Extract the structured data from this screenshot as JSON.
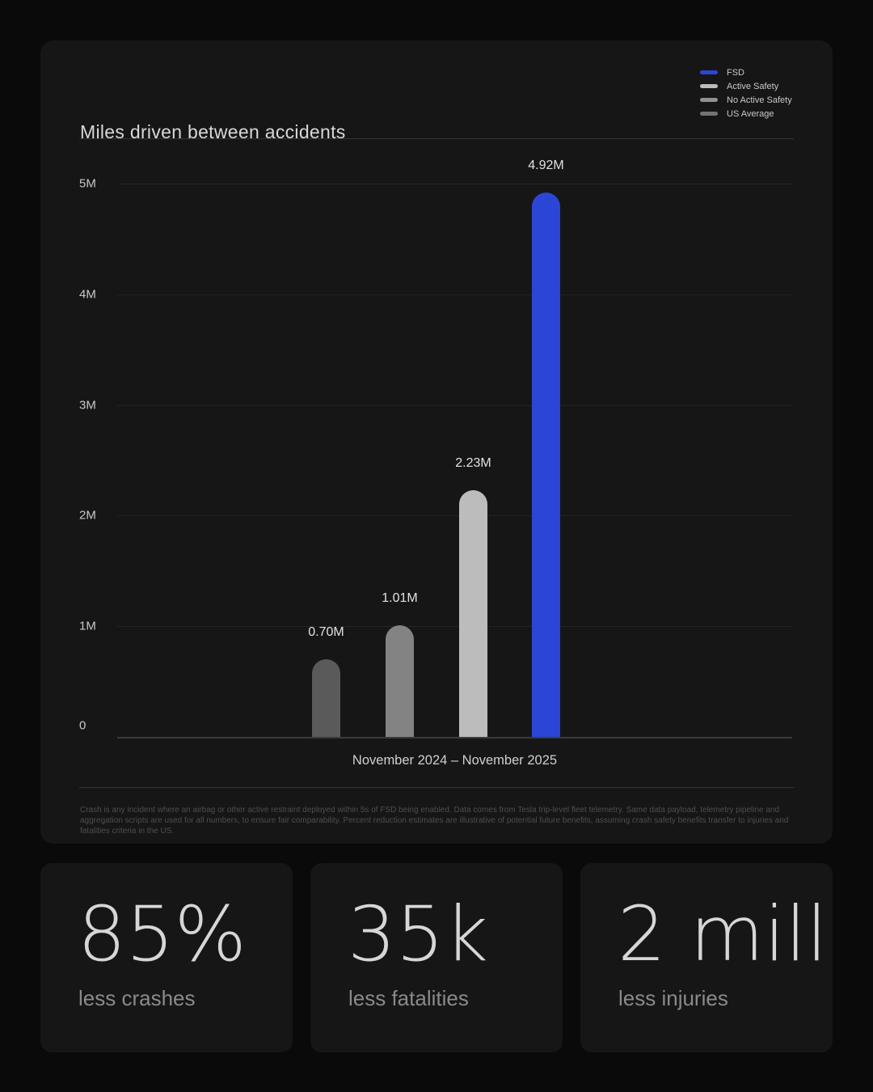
{
  "chart_card": {
    "title": "Miles driven between accidents",
    "x_axis_label": "November 2024 – November 2025",
    "footnote": "Crash is any incident where an airbag or other active restraint deployed within 5s of FSD being enabled. Data comes from Tesla trip-level fleet telemetry. Same data payload, telemetry pipeline and aggregation scripts are used for all numbers, to ensure fair comparability. Percent reduction estimates are illustrative of potential future benefits, assuming crash safety benefits transfer to injuries and fatalities criteria in the US.",
    "legend": [
      {
        "label": "FSD",
        "color": "#2b46d4"
      },
      {
        "label": "Active Safety",
        "color": "#bcbcbc"
      },
      {
        "label": "No Active Safety",
        "color": "#919191"
      },
      {
        "label": "US Average",
        "color": "#737373"
      }
    ]
  },
  "chart_data": {
    "type": "bar",
    "title": "Miles driven between accidents",
    "categories": [
      "US Average",
      "No Active Safety",
      "Active Safety",
      "FSD"
    ],
    "values": [
      0.7,
      1.01,
      2.23,
      4.92
    ],
    "value_labels": [
      "0.70M",
      "1.01M",
      "2.23M",
      "4.92M"
    ],
    "bar_colors": [
      "#5a5a5a",
      "#838383",
      "#bcbcbc",
      "#2b46d4"
    ],
    "xlabel": "November 2024 – November 2025",
    "ylabel": "",
    "ylim": [
      0,
      5.4
    ],
    "y_ticks": [
      {
        "value": 0,
        "label": "0"
      },
      {
        "value": 1,
        "label": "1M"
      },
      {
        "value": 2,
        "label": "2M"
      },
      {
        "value": 3,
        "label": "3M"
      },
      {
        "value": 4,
        "label": "4M"
      },
      {
        "value": 5,
        "label": "5M"
      }
    ],
    "grid": true,
    "legend_position": "top-right",
    "accent_color": "#2b46d4"
  },
  "stats": [
    {
      "value": "85%",
      "label": "less crashes"
    },
    {
      "value": "35k",
      "label": "less fatalities"
    },
    {
      "value": "2 mill",
      "label": "less injuries"
    }
  ]
}
